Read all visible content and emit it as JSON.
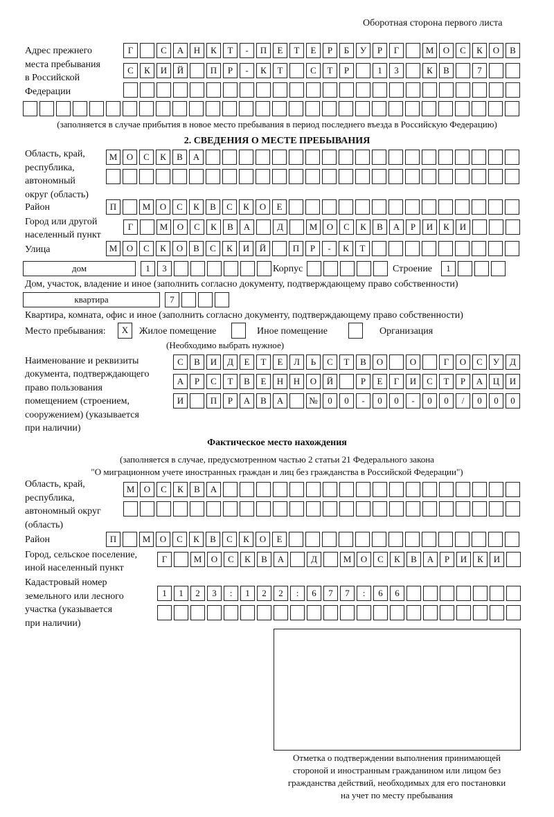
{
  "header": {
    "side_label": "Оборотная сторона первого листа"
  },
  "previous_address": {
    "label": [
      "Адрес прежнего",
      "места пребывания",
      "в Российской",
      "Федерации"
    ],
    "rows": [
      [
        "Г",
        "",
        "С",
        "А",
        "Н",
        "К",
        "Т",
        "-",
        "П",
        "Е",
        "Т",
        "Е",
        "Р",
        "Б",
        "У",
        "Р",
        "Г",
        "",
        "М",
        "О",
        "С",
        "К",
        "О",
        "В"
      ],
      [
        "С",
        "К",
        "И",
        "Й",
        "",
        "П",
        "Р",
        "-",
        "К",
        "Т",
        "",
        "С",
        "Т",
        "Р",
        "",
        "1",
        "3",
        "",
        "К",
        "В",
        "",
        "7",
        "",
        ""
      ],
      [
        "",
        "",
        "",
        "",
        "",
        "",
        "",
        "",
        "",
        "",
        "",
        "",
        "",
        "",
        "",
        "",
        "",
        "",
        "",
        "",
        "",
        "",
        "",
        ""
      ],
      [
        "",
        "",
        "",
        "",
        "",
        "",
        "",
        "",
        "",
        "",
        "",
        "",
        "",
        "",
        "",
        "",
        "",
        "",
        "",
        "",
        "",
        "",
        "",
        "",
        "",
        "",
        "",
        "",
        "",
        ""
      ]
    ],
    "note": "(заполняется в случае прибытия в новое место пребывания в период последнего въезда в Российскую Федерацию)"
  },
  "section2": {
    "title": "2. СВЕДЕНИЯ О МЕСТЕ ПРЕБЫВАНИЯ",
    "region_label": [
      "Область, край,",
      "республика,",
      "автономный",
      "округ (область)"
    ],
    "region_rows": [
      [
        "М",
        "О",
        "С",
        "К",
        "В",
        "А",
        "",
        "",
        "",
        "",
        "",
        "",
        "",
        "",
        "",
        "",
        "",
        "",
        "",
        "",
        "",
        "",
        "",
        "",
        ""
      ],
      [
        "",
        "",
        "",
        "",
        "",
        "",
        "",
        "",
        "",
        "",
        "",
        "",
        "",
        "",
        "",
        "",
        "",
        "",
        "",
        "",
        "",
        "",
        "",
        "",
        ""
      ]
    ],
    "district_label": "Район",
    "district": [
      "П",
      "",
      "М",
      "О",
      "С",
      "К",
      "В",
      "С",
      "К",
      "О",
      "Е",
      "",
      "",
      "",
      "",
      "",
      "",
      "",
      "",
      "",
      "",
      "",
      "",
      "",
      ""
    ],
    "city_label": [
      "Город или другой",
      "населенный пункт"
    ],
    "city": [
      "Г",
      "",
      "М",
      "О",
      "С",
      "К",
      "В",
      "А",
      "",
      "Д",
      "",
      "М",
      "О",
      "С",
      "К",
      "В",
      "А",
      "Р",
      "И",
      "К",
      "И",
      "",
      "",
      ""
    ],
    "street_label": "Улица",
    "street": [
      "М",
      "О",
      "С",
      "К",
      "О",
      "В",
      "С",
      "К",
      "И",
      "Й",
      "",
      "П",
      "Р",
      "-",
      "К",
      "Т",
      "",
      "",
      "",
      "",
      "",
      "",
      "",
      "",
      ""
    ],
    "house_type": "дом",
    "house": [
      "1",
      "3",
      "",
      "",
      "",
      "",
      "",
      ""
    ],
    "korpus_label": "Корпус",
    "korpus": [
      "",
      "",
      "",
      "",
      ""
    ],
    "building_label": "Строение",
    "building": [
      "1",
      "",
      "",
      ""
    ],
    "house_note": "Дом, участок, владение и иное (заполнить согласно документу, подтверждающему право собственности)",
    "apt_type": "квартира",
    "apt": [
      "7",
      "",
      "",
      ""
    ],
    "apt_note": "Квартира, комната, офис и иное (заполнить согласно документу, подтверждающему право собственности)",
    "stay_label": "Место пребывания:",
    "options": [
      {
        "label": "Жилое помещение",
        "mark": "X"
      },
      {
        "label": "Иное помещение",
        "mark": ""
      },
      {
        "label": "Организация",
        "mark": ""
      }
    ],
    "choose_note": "(Необходимо выбрать нужное)",
    "doc_label": [
      "Наименование и реквизиты",
      "документа, подтверждающего",
      "право пользования",
      "помещением (строением,",
      "сооружением) (указывается",
      "при наличии)"
    ],
    "doc_rows": [
      [
        "С",
        "В",
        "И",
        "Д",
        "Е",
        "Т",
        "Е",
        "Л",
        "Ь",
        "С",
        "Т",
        "В",
        "О",
        "",
        "О",
        "",
        "Г",
        "О",
        "С",
        "У",
        "Д"
      ],
      [
        "А",
        "Р",
        "С",
        "Т",
        "В",
        "Е",
        "Н",
        "Н",
        "О",
        "Й",
        "",
        "Р",
        "Е",
        "Г",
        "И",
        "С",
        "Т",
        "Р",
        "А",
        "Ц",
        "И"
      ],
      [
        "И",
        "",
        "П",
        "Р",
        "А",
        "В",
        "А",
        "",
        "№",
        "0",
        "0",
        "-",
        "0",
        "0",
        "-",
        "0",
        "0",
        "/",
        "0",
        "0",
        "0"
      ]
    ]
  },
  "actual": {
    "title": "Фактическое место нахождения",
    "note": [
      "(заполняется в случае, предусмотренном частью 2 статьи 21 Федерального закона",
      "\"О миграционном учете иностранных граждан и лиц без гражданства в Российской Федерации\")"
    ],
    "region_label": [
      "Область, край,",
      "республика,",
      "автономный округ",
      "(область)"
    ],
    "region_rows": [
      [
        "М",
        "О",
        "С",
        "К",
        "В",
        "А",
        "",
        "",
        "",
        "",
        "",
        "",
        "",
        "",
        "",
        "",
        "",
        "",
        "",
        "",
        "",
        "",
        "",
        ""
      ],
      [
        "",
        "",
        "",
        "",
        "",
        "",
        "",
        "",
        "",
        "",
        "",
        "",
        "",
        "",
        "",
        "",
        "",
        "",
        "",
        "",
        "",
        "",
        "",
        ""
      ]
    ],
    "district_label": "Район",
    "district": [
      "П",
      "",
      "М",
      "О",
      "С",
      "К",
      "В",
      "С",
      "К",
      "О",
      "Е",
      "",
      "",
      "",
      "",
      "",
      "",
      "",
      "",
      "",
      "",
      "",
      "",
      "",
      ""
    ],
    "city_label": [
      "Город, сельское поселение,",
      "иной населенный пункт"
    ],
    "city": [
      "Г",
      "",
      "М",
      "О",
      "С",
      "К",
      "В",
      "А",
      "",
      "Д",
      "",
      "М",
      "О",
      "С",
      "К",
      "В",
      "А",
      "Р",
      "И",
      "К",
      "И",
      ""
    ],
    "cadastral_label": [
      "Кадастровый номер",
      "земельного или лесного",
      "участка (указывается",
      "при наличии)"
    ],
    "cadastral_rows": [
      [
        "1",
        "1",
        "2",
        "3",
        ":",
        "1",
        "2",
        "2",
        ":",
        "6",
        "7",
        "7",
        ":",
        "6",
        "6",
        "",
        "",
        "",
        "",
        "",
        "",
        ""
      ],
      [
        "",
        "",
        "",
        "",
        "",
        "",
        "",
        "",
        "",
        "",
        "",
        "",
        "",
        "",
        "",
        "",
        "",
        "",
        "",
        "",
        "",
        ""
      ]
    ]
  },
  "stamp": {
    "caption": [
      "Отметка о подтверждении выполнения принимающей",
      "стороной и иностранным гражданином или лицом без",
      "гражданства действий, необходимых для его постановки",
      "на учет по месту пребывания"
    ]
  }
}
